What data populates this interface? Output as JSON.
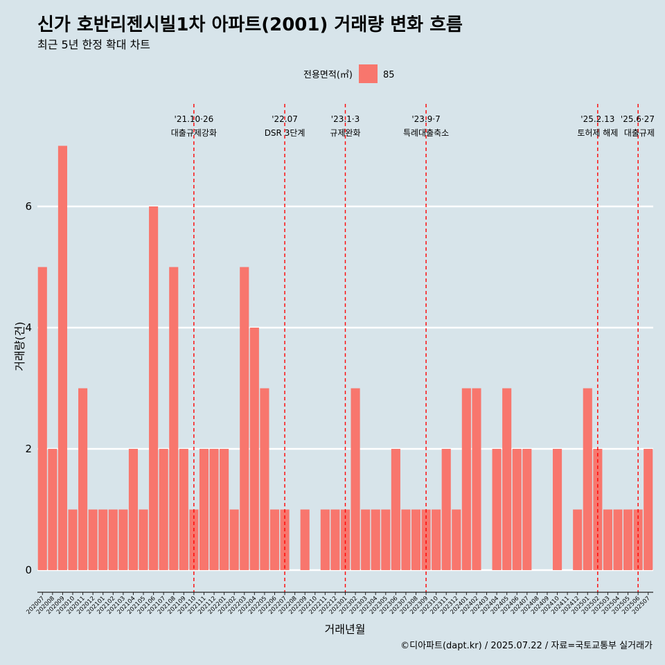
{
  "chart_data": {
    "type": "bar",
    "title": "신가 호반리젠시빌1차 아파트(2001) 거래량 변화 흐름",
    "subtitle": "최근 5년 한정 확대 차트",
    "xlabel": "거래년월",
    "ylabel": "거래량(건)",
    "ylim": [
      0,
      7
    ],
    "yticks": [
      0,
      2,
      4,
      6
    ],
    "grid": true,
    "legend": {
      "title": "전용면적(㎡)",
      "placement": "top",
      "entries": [
        {
          "name": "85",
          "color": "#f8766d"
        }
      ]
    },
    "caption": "©디아파트(dapt.kr) / 2025.07.22 / 자료=국토교통부 실거래가",
    "categories": [
      "202007",
      "202008",
      "202009",
      "202010",
      "202011",
      "202012",
      "202101",
      "202102",
      "202103",
      "202104",
      "202105",
      "202106",
      "202107",
      "202108",
      "202109",
      "202110",
      "202111",
      "202112",
      "202201",
      "202202",
      "202203",
      "202204",
      "202205",
      "202206",
      "202207",
      "202208",
      "202209",
      "202210",
      "202211",
      "202212",
      "202301",
      "202302",
      "202303",
      "202304",
      "202305",
      "202306",
      "202307",
      "202308",
      "202309",
      "202310",
      "202311",
      "202312",
      "202401",
      "202402",
      "202403",
      "202404",
      "202405",
      "202406",
      "202407",
      "202408",
      "202409",
      "202410",
      "202411",
      "202412",
      "202501",
      "202502",
      "202503",
      "202504",
      "202505",
      "202506",
      "202507"
    ],
    "series": [
      {
        "name": "85",
        "color": "#f8766d",
        "values": [
          5,
          2,
          7,
          1,
          3,
          1,
          1,
          1,
          1,
          2,
          1,
          6,
          2,
          5,
          2,
          1,
          2,
          2,
          2,
          1,
          5,
          4,
          3,
          1,
          1,
          0,
          1,
          0,
          1,
          1,
          1,
          3,
          1,
          1,
          1,
          2,
          1,
          1,
          1,
          1,
          2,
          1,
          3,
          3,
          0,
          2,
          3,
          2,
          2,
          0,
          0,
          2,
          0,
          1,
          3,
          2,
          1,
          1,
          1,
          1,
          2
        ]
      }
    ],
    "annotations": [
      {
        "category": "202110",
        "date": "'21.10·26",
        "label": "대출규제강화"
      },
      {
        "category": "202207",
        "date": "'22.07",
        "label": "DSR 3단계"
      },
      {
        "category": "202301",
        "date": "'23.1·3",
        "label": "규제완화"
      },
      {
        "category": "202309",
        "date": "'23.9·7",
        "label": "특례대출축소"
      },
      {
        "category": "202502",
        "date": "'25.2.13",
        "label": "토허제 해제"
      },
      {
        "category": "202506",
        "date": "'25.6·27",
        "label": "대출규제"
      }
    ],
    "colors": {
      "background": "#d7e4ea",
      "bar": "#f8766d",
      "event_line": "#ff0000",
      "grid": "#ffffff"
    }
  }
}
